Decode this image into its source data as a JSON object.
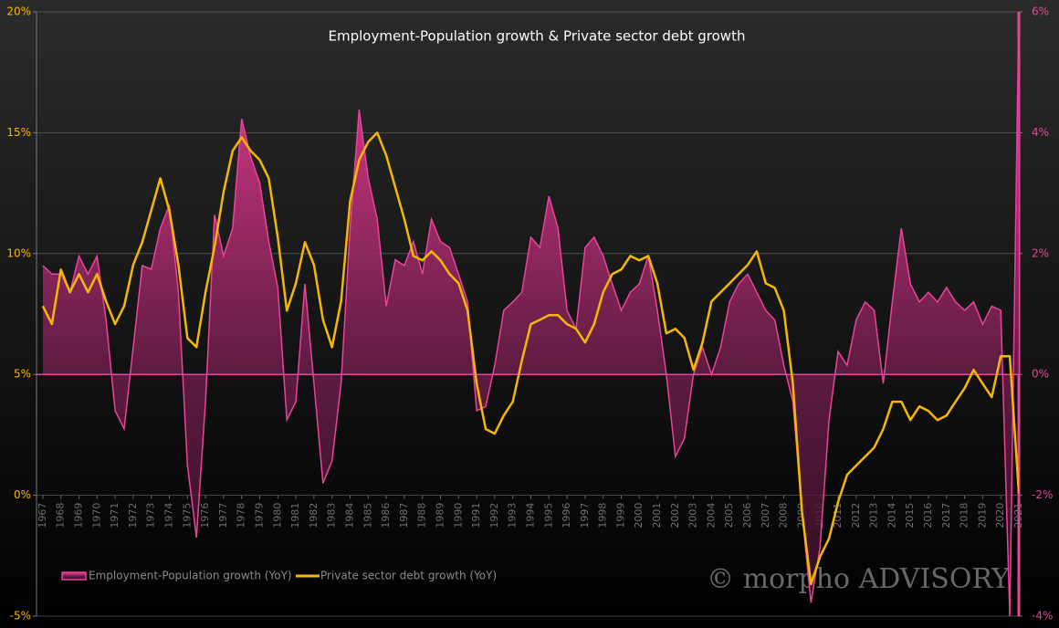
{
  "chart_data": {
    "type": "line",
    "title": "Employment-Population growth & Private sector debt growth",
    "watermark": "© morpho ADVISORY",
    "legend": "bottom-left",
    "grid": true,
    "xlim": [
      1966.65,
      2021
    ],
    "xticks": [
      1967,
      1968,
      1969,
      1970,
      1971,
      1972,
      1973,
      1974,
      1975,
      1976,
      1977,
      1978,
      1979,
      1980,
      1981,
      1982,
      1983,
      1984,
      1985,
      1986,
      1987,
      1988,
      1989,
      1990,
      1991,
      1992,
      1993,
      1994,
      1995,
      1996,
      1997,
      1998,
      1999,
      2000,
      2001,
      2002,
      2003,
      2004,
      2005,
      2006,
      2007,
      2008,
      2009,
      2010,
      2011,
      2012,
      2013,
      2014,
      2015,
      2016,
      2017,
      2018,
      2019,
      2020,
      2021
    ],
    "ylim": [
      -5,
      20
    ],
    "yticks": [
      {
        "value": -5,
        "label": "-5%"
      },
      {
        "value": 0,
        "label": "0%"
      },
      {
        "value": 5,
        "label": "5%"
      },
      {
        "value": 10,
        "label": "10%"
      },
      {
        "value": 15,
        "label": "15%"
      },
      {
        "value": 20,
        "label": "20%"
      }
    ],
    "y2lim": [
      -4,
      6
    ],
    "y2ticks": [
      {
        "value": -4,
        "label": "-4%"
      },
      {
        "value": -2,
        "label": "-2%"
      },
      {
        "value": 0,
        "label": "0%"
      },
      {
        "value": 2,
        "label": "2%"
      },
      {
        "value": 4,
        "label": "4%"
      },
      {
        "value": 6,
        "label": "6%"
      }
    ],
    "x": [
      1967,
      1967.5,
      1968,
      1968.5,
      1969,
      1969.5,
      1970,
      1970.5,
      1971,
      1971.5,
      1972,
      1972.5,
      1973,
      1973.5,
      1974,
      1974.5,
      1975,
      1975.5,
      1976,
      1976.5,
      1977,
      1977.5,
      1978,
      1978.5,
      1979,
      1979.5,
      1980,
      1980.5,
      1981,
      1981.5,
      1982,
      1982.5,
      1983,
      1983.5,
      1984,
      1984.5,
      1985,
      1985.5,
      1986,
      1986.5,
      1987,
      1987.5,
      1988,
      1988.5,
      1989,
      1989.5,
      1990,
      1990.5,
      1991,
      1991.5,
      1992,
      1992.5,
      1993,
      1993.5,
      1994,
      1994.5,
      1995,
      1995.5,
      1996,
      1996.5,
      1997,
      1997.5,
      1998,
      1998.5,
      1999,
      1999.5,
      2000,
      2000.5,
      2001,
      2001.5,
      2002,
      2002.5,
      2003,
      2003.5,
      2004,
      2004.5,
      2005,
      2005.5,
      2006,
      2006.5,
      2007,
      2007.5,
      2008,
      2008.5,
      2009,
      2009.5,
      2010,
      2010.5,
      2011,
      2011.5,
      2012,
      2012.5,
      2013,
      2013.5,
      2014,
      2014.5,
      2015,
      2015.5,
      2016,
      2016.5,
      2017,
      2017.5,
      2018,
      2018.5,
      2019,
      2019.5,
      2020,
      2020.5,
      2021
    ],
    "series": [
      {
        "name": "Employment-Population growth (YoY)",
        "color": "#e8449a",
        "axis": "y2",
        "area": true,
        "values": [
          1.8,
          1.66,
          1.66,
          1.36,
          1.96,
          1.66,
          1.96,
          0.9,
          -0.6,
          -0.9,
          0.45,
          1.8,
          1.74,
          2.42,
          2.8,
          1.36,
          -1.5,
          -2.7,
          -0.45,
          2.64,
          1.96,
          2.42,
          4.23,
          3.6,
          3.17,
          2.2,
          1.44,
          -0.75,
          -0.45,
          1.5,
          -0.15,
          -1.8,
          -1.43,
          -0.15,
          2.42,
          4.38,
          3.25,
          2.57,
          1.13,
          1.9,
          1.8,
          2.2,
          1.66,
          2.57,
          2.2,
          2.1,
          1.66,
          1.2,
          -0.6,
          -0.53,
          0.15,
          1.06,
          1.2,
          1.36,
          2.27,
          2.1,
          2.95,
          2.42,
          1.06,
          0.75,
          2.1,
          2.27,
          1.96,
          1.5,
          1.06,
          1.36,
          1.5,
          1.96,
          1.06,
          0,
          -1.36,
          -1.06,
          0,
          0.45,
          0,
          0.45,
          1.2,
          1.5,
          1.66,
          1.36,
          1.06,
          0.9,
          0.15,
          -0.45,
          -2.27,
          -3.78,
          -2.87,
          -0.75,
          0.38,
          0.15,
          0.9,
          1.2,
          1.06,
          -0.15,
          1.2,
          2.42,
          1.5,
          1.2,
          1.36,
          1.2,
          1.44,
          1.2,
          1.06,
          1.2,
          0.83,
          1.13,
          1.06,
          -4,
          6
        ]
      },
      {
        "name": "Private sector debt growth (YoY)",
        "color": "#f5b800",
        "values": [
          7.83,
          7.08,
          9.34,
          8.4,
          9.15,
          8.4,
          9.15,
          8.02,
          7.08,
          7.83,
          9.53,
          10.47,
          11.79,
          13.11,
          11.79,
          9.53,
          6.5,
          6.13,
          8.4,
          10.28,
          12.55,
          14.25,
          14.81,
          14.25,
          13.87,
          13.11,
          10.66,
          7.64,
          8.77,
          10.47,
          9.53,
          7.26,
          6.13,
          8.02,
          12.17,
          13.87,
          14.62,
          15,
          14.06,
          12.74,
          11.42,
          9.9,
          9.72,
          10.09,
          9.72,
          9.15,
          8.77,
          7.64,
          4.62,
          2.74,
          2.55,
          3.3,
          3.87,
          5.57,
          7.08,
          7.26,
          7.45,
          7.45,
          7.08,
          6.89,
          6.32,
          7.08,
          8.4,
          9.15,
          9.34,
          9.9,
          9.72,
          9.9,
          8.77,
          6.7,
          6.89,
          6.51,
          5.19,
          6.32,
          8.02,
          8.4,
          8.77,
          9.15,
          9.53,
          10.09,
          8.77,
          8.58,
          7.64,
          4.62,
          -0.66,
          -3.68,
          -2.55,
          -1.79,
          -0.28,
          0.85,
          1.23,
          1.6,
          1.98,
          2.74,
          3.87,
          3.87,
          3.11,
          3.68,
          3.49,
          3.11,
          3.3,
          3.87,
          4.43,
          5.19,
          4.62,
          4.06,
          5.75,
          5.75,
          0.09
        ]
      }
    ]
  }
}
